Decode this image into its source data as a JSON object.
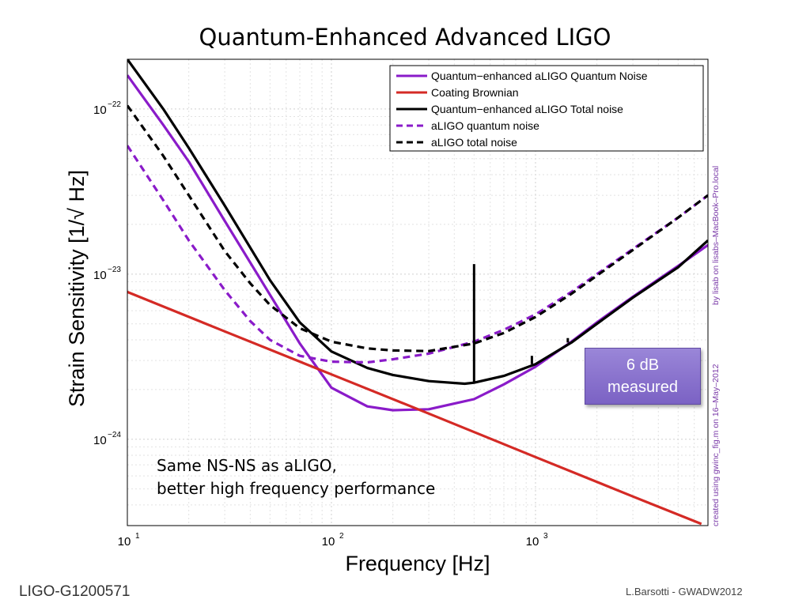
{
  "slide": {
    "title": "Quantum-Enhanced Advanced LIGO",
    "footer_left": "LIGO-G1200571",
    "footer_right": "L.Barsotti - GWADW2012",
    "badge_line1": "6 dB",
    "badge_line2": "measured",
    "annotation_line1": "Same NS-NS as aLIGO,",
    "annotation_line2": "better high frequency performance",
    "side_credit_1": "created using gwinc_fig.m on 16–May–2012",
    "side_credit_2": "by lisab on lisabs–MacBook–Pro.local"
  },
  "chart_data": {
    "type": "line",
    "xlabel": "Frequency [Hz]",
    "ylabel": "Strain Sensitivity [1/√ Hz]",
    "xscale": "log",
    "yscale": "log",
    "xlim": [
      10,
      7000
    ],
    "ylim": [
      3e-25,
      2e-22
    ],
    "x_ticks": [
      {
        "value": 10,
        "base": "10",
        "exp": "1"
      },
      {
        "value": 100,
        "base": "10",
        "exp": "2"
      },
      {
        "value": 1000,
        "base": "10",
        "exp": "3"
      }
    ],
    "y_ticks": [
      {
        "value": 1e-22,
        "base": "10",
        "exp": "−22"
      },
      {
        "value": 1e-23,
        "base": "10",
        "exp": "−23"
      },
      {
        "value": 1e-24,
        "base": "10",
        "exp": "−24"
      }
    ],
    "grid": true,
    "legend_position": "top-right",
    "series": [
      {
        "name": "Quantum−enhanced aLIGO Quantum Noise",
        "color": "#8a1bc9",
        "dash": "solid",
        "x": [
          10,
          15,
          20,
          30,
          50,
          70,
          100,
          150,
          200,
          300,
          500,
          700,
          1000,
          1500,
          2000,
          3000,
          5000,
          7000
        ],
        "y": [
          1.6e-22,
          8e-23,
          4.8e-23,
          2.1e-23,
          7.5e-24,
          3.8e-24,
          2.05e-24,
          1.58e-24,
          1.5e-24,
          1.52e-24,
          1.75e-24,
          2.15e-24,
          2.75e-24,
          3.9e-24,
          5.1e-24,
          7.3e-24,
          1.12e-23,
          1.5e-23
        ]
      },
      {
        "name": "Coating Brownian",
        "color": "#d42a25",
        "dash": "solid",
        "x": [
          10,
          30,
          100,
          300,
          1000,
          3000,
          6500
        ],
        "y": [
          7.8e-24,
          4.5e-24,
          2.47e-24,
          1.43e-24,
          7.8e-25,
          4.5e-25,
          3.07e-25
        ]
      },
      {
        "name": "Quantum−enhanced aLIGO Total noise",
        "color": "#000000",
        "dash": "solid",
        "x": [
          10,
          15,
          20,
          30,
          50,
          70,
          100,
          150,
          200,
          300,
          450,
          500,
          700,
          1000,
          1500,
          2000,
          3000,
          5000,
          7000
        ],
        "y": [
          2e-22,
          1e-22,
          5.8e-23,
          2.6e-23,
          9.2e-24,
          5.1e-24,
          3.4e-24,
          2.7e-24,
          2.45e-24,
          2.25e-24,
          2.17e-24,
          2.2e-24,
          2.42e-24,
          2.85e-24,
          3.85e-24,
          5e-24,
          7.2e-24,
          1.1e-23,
          1.6e-23
        ]
      },
      {
        "name": "aLIGO quantum noise",
        "color": "#8a1bc9",
        "dash": "dashed",
        "x": [
          10,
          15,
          20,
          30,
          40,
          50,
          70,
          100,
          150,
          200,
          300,
          500,
          700,
          1000,
          1500,
          2000,
          3000,
          5000,
          7000
        ],
        "y": [
          6e-23,
          2.8e-23,
          1.6e-23,
          8e-24,
          5.2e-24,
          4e-24,
          3.2e-24,
          2.95e-24,
          2.92e-24,
          3.05e-24,
          3.3e-24,
          3.9e-24,
          4.6e-24,
          5.7e-24,
          7.8e-24,
          1e-23,
          1.42e-23,
          2.2e-23,
          3e-23
        ]
      },
      {
        "name": "aLIGO total noise",
        "color": "#000000",
        "dash": "dashed",
        "x": [
          10,
          15,
          20,
          30,
          40,
          50,
          70,
          100,
          150,
          200,
          300,
          500,
          700,
          1000,
          1500,
          2000,
          3000,
          5000,
          7000
        ],
        "y": [
          1.05e-22,
          5.2e-23,
          3e-23,
          1.38e-23,
          8.8e-24,
          6.5e-24,
          4.7e-24,
          3.9e-24,
          3.55e-24,
          3.45e-24,
          3.42e-24,
          3.8e-24,
          4.4e-24,
          5.5e-24,
          7.6e-24,
          9.8e-24,
          1.4e-23,
          2.2e-23,
          3e-23
        ]
      }
    ],
    "spikes": [
      {
        "x": 500,
        "y_low": 2.17e-24,
        "y_high": 1.15e-23
      },
      {
        "x": 960,
        "y_low": 2.85e-24,
        "y_high": 3.2e-24
      },
      {
        "x": 1440,
        "y_low": 3.85e-24,
        "y_high": 4.1e-24
      }
    ]
  }
}
